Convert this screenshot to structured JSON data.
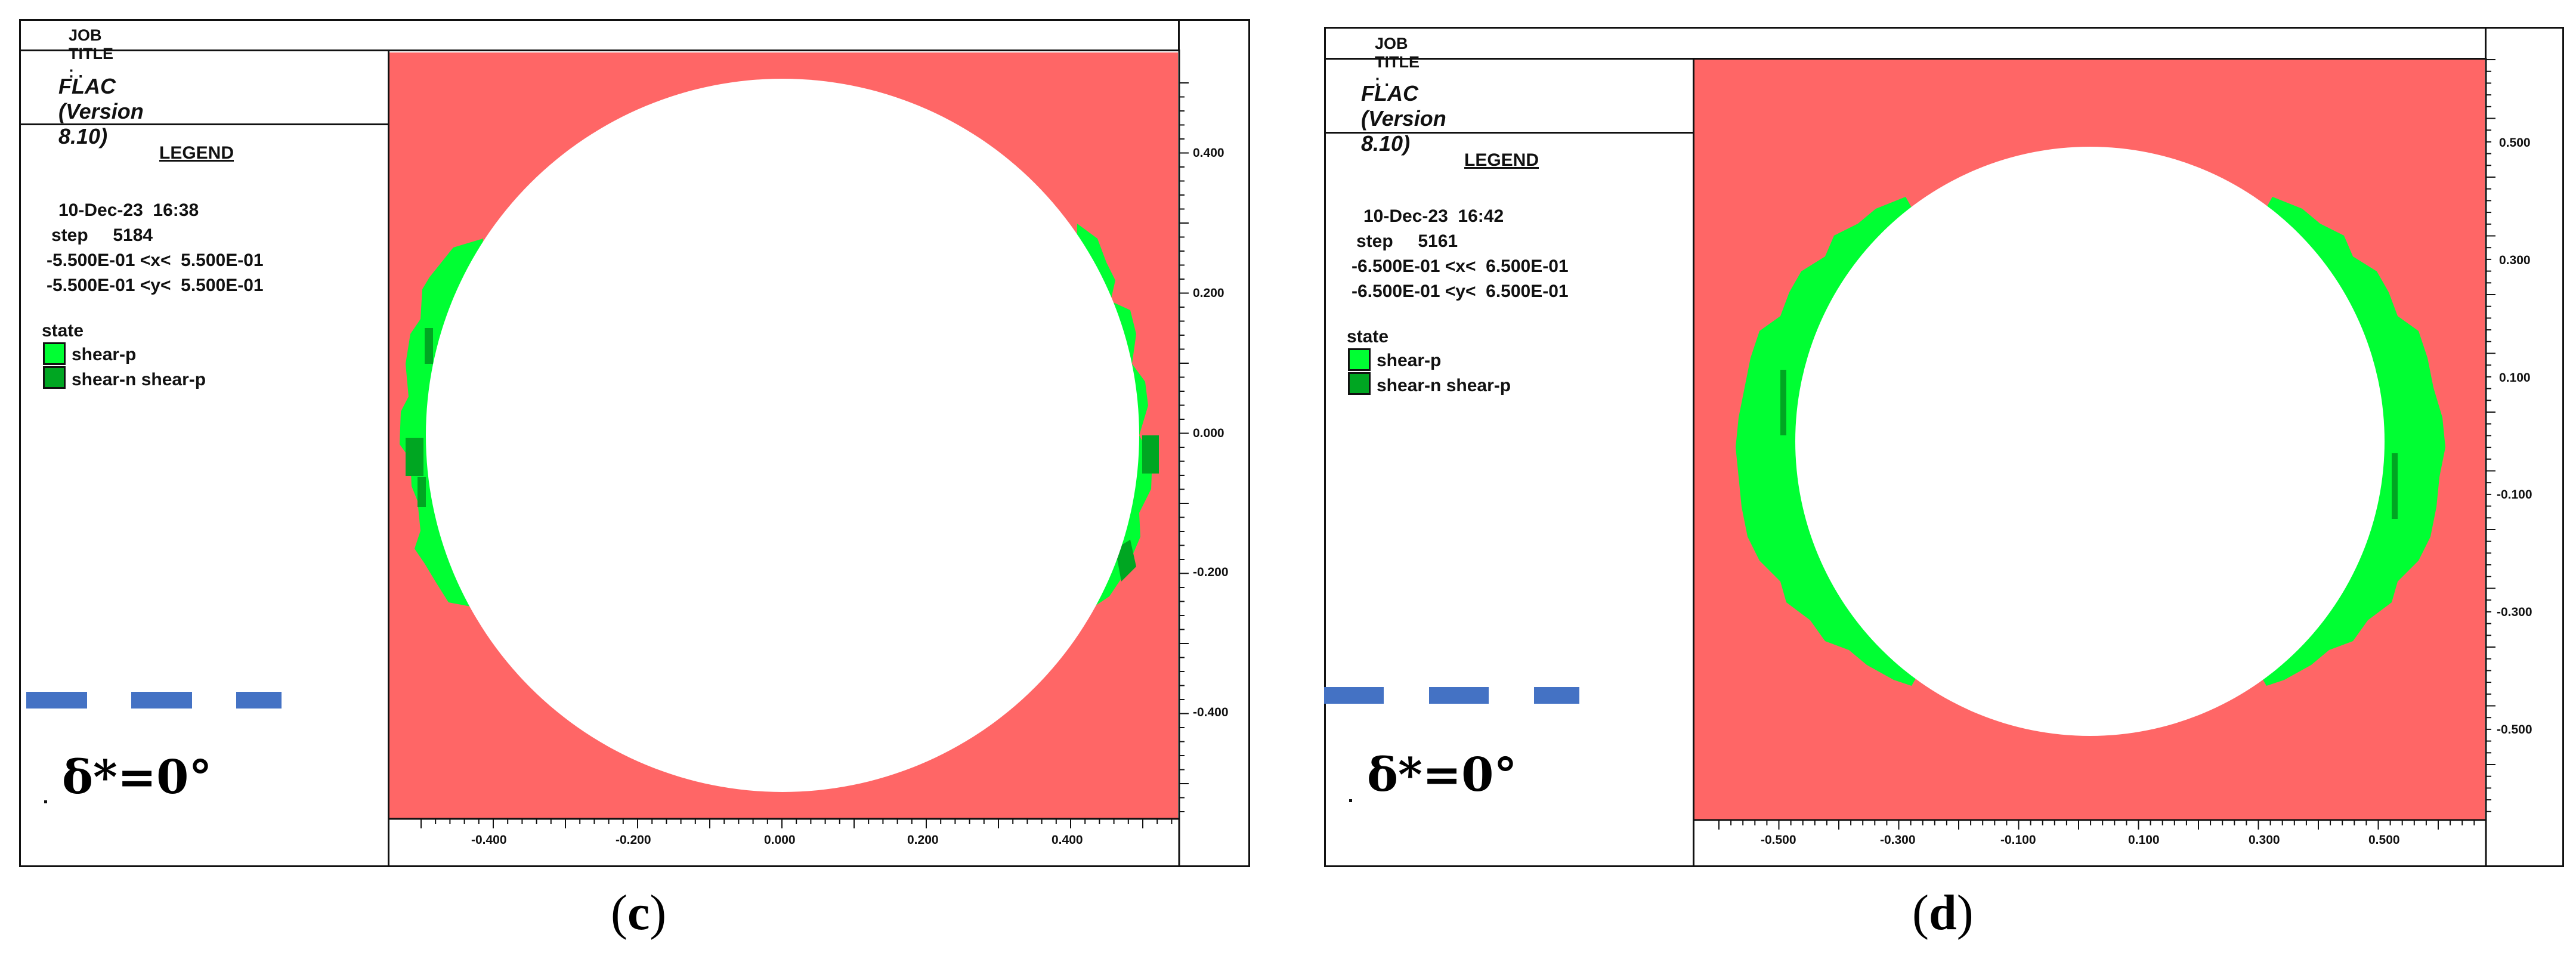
{
  "colors": {
    "background_zone": "#ff6666",
    "shear_p": "#00ff33",
    "shear_n_shear_p": "#00a622",
    "opening": "#ffffff",
    "dash": "#4472c4"
  },
  "panels": [
    {
      "job_title": "JOB TITLE : .",
      "program": "FLAC (Version 8.10)",
      "legend_heading": "LEGEND",
      "date_time": "10-Dec-23  16:38",
      "step": "step     5184",
      "x_range": "-5.500E-01 <x<  5.500E-01",
      "y_range": "-5.500E-01 <y<  5.500E-01",
      "state_title": "state",
      "legend_items": [
        {
          "label": "shear-p",
          "color": "#00ff33"
        },
        {
          "label": "shear-n shear-p",
          "color": "#00a622"
        }
      ],
      "annotation": "δ*=0°",
      "caption_letter": "c",
      "x_ticks": [
        "-0.400",
        "-0.200",
        "0.000",
        "0.200",
        "0.400"
      ],
      "y_ticks": [
        "0.400",
        "0.200",
        "0.000",
        "-0.200",
        "-0.400"
      ],
      "plastic_zone_extent": "narrow"
    },
    {
      "job_title": "JOB TITLE : .",
      "program": "FLAC (Version 8.10)",
      "legend_heading": "LEGEND",
      "date_time": "10-Dec-23  16:42",
      "step": "step     5161",
      "x_range": "-6.500E-01 <x<  6.500E-01",
      "y_range": "-6.500E-01 <y<  6.500E-01",
      "state_title": "state",
      "legend_items": [
        {
          "label": "shear-p",
          "color": "#00ff33"
        },
        {
          "label": "shear-n shear-p",
          "color": "#00a622"
        }
      ],
      "annotation": "δ*=0°",
      "caption_letter": "d",
      "x_ticks": [
        "-0.500",
        "-0.300",
        "-0.100",
        "0.100",
        "0.300",
        "0.500"
      ],
      "y_ticks": [
        "0.500",
        "0.300",
        "0.100",
        "-0.100",
        "-0.300",
        "-0.500"
      ],
      "plastic_zone_extent": "wide"
    }
  ]
}
